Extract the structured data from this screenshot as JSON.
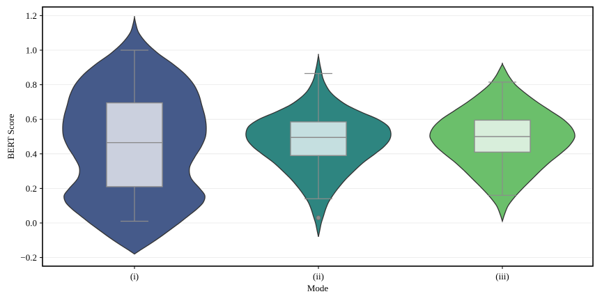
{
  "chart_data": {
    "type": "violin",
    "title": "",
    "xlabel": "Mode",
    "ylabel": "BERT Score",
    "categories": [
      "(i)",
      "(ii)",
      "(iii)"
    ],
    "ylim": [
      -0.25,
      1.25
    ],
    "yticks": [
      -0.2,
      0.0,
      0.2,
      0.4,
      0.6,
      0.8,
      1.0,
      1.2
    ],
    "ytick_labels": [
      "−0.2",
      "0.0",
      "0.2",
      "0.4",
      "0.6",
      "0.8",
      "1.0",
      "1.2"
    ],
    "grid": true,
    "colors": {
      "frame": "#000000",
      "grid": "#e8e8e8",
      "box_edge": "#8c8c8c",
      "outline": "#333333"
    },
    "series": [
      {
        "category": "(i)",
        "fill": "#455a8a",
        "box_fill": "#cbd0de",
        "min": 0.01,
        "q1": 0.21,
        "median": 0.465,
        "q3": 0.695,
        "max": 1.0,
        "outliers": [],
        "density": [
          [
            -0.18,
            0.0
          ],
          [
            -0.16,
            0.07
          ],
          [
            -0.12,
            0.22
          ],
          [
            -0.08,
            0.36
          ],
          [
            -0.04,
            0.49
          ],
          [
            0.0,
            0.62
          ],
          [
            0.04,
            0.74
          ],
          [
            0.08,
            0.86
          ],
          [
            0.12,
            0.95
          ],
          [
            0.16,
            0.97
          ],
          [
            0.2,
            0.9
          ],
          [
            0.26,
            0.78
          ],
          [
            0.32,
            0.76
          ],
          [
            0.38,
            0.83
          ],
          [
            0.44,
            0.92
          ],
          [
            0.5,
            0.98
          ],
          [
            0.56,
            0.99
          ],
          [
            0.62,
            0.97
          ],
          [
            0.68,
            0.93
          ],
          [
            0.74,
            0.89
          ],
          [
            0.8,
            0.82
          ],
          [
            0.86,
            0.7
          ],
          [
            0.92,
            0.53
          ],
          [
            0.98,
            0.33
          ],
          [
            1.04,
            0.17
          ],
          [
            1.1,
            0.06
          ],
          [
            1.15,
            0.02
          ],
          [
            1.19,
            0.0
          ]
        ]
      },
      {
        "category": "(ii)",
        "fill": "#2e8580",
        "box_fill": "#c5dfe0",
        "min": 0.14,
        "q1": 0.39,
        "median": 0.495,
        "q3": 0.585,
        "max": 0.865,
        "outliers": [
          0.03
        ],
        "density": [
          [
            -0.08,
            0.0
          ],
          [
            -0.04,
            0.02
          ],
          [
            0.0,
            0.04
          ],
          [
            0.04,
            0.07
          ],
          [
            0.08,
            0.1
          ],
          [
            0.12,
            0.14
          ],
          [
            0.16,
            0.2
          ],
          [
            0.2,
            0.27
          ],
          [
            0.25,
            0.37
          ],
          [
            0.3,
            0.49
          ],
          [
            0.35,
            0.62
          ],
          [
            0.4,
            0.78
          ],
          [
            0.44,
            0.9
          ],
          [
            0.48,
            0.98
          ],
          [
            0.52,
            1.0
          ],
          [
            0.56,
            0.96
          ],
          [
            0.6,
            0.82
          ],
          [
            0.64,
            0.6
          ],
          [
            0.68,
            0.4
          ],
          [
            0.72,
            0.26
          ],
          [
            0.76,
            0.16
          ],
          [
            0.8,
            0.1
          ],
          [
            0.84,
            0.06
          ],
          [
            0.88,
            0.04
          ],
          [
            0.92,
            0.02
          ],
          [
            0.97,
            0.0
          ]
        ]
      },
      {
        "category": "(iii)",
        "fill": "#6bbf6b",
        "box_fill": "#d8eedb",
        "min": 0.16,
        "q1": 0.41,
        "median": 0.5,
        "q3": 0.595,
        "max": 0.815,
        "outliers": [],
        "density": [
          [
            0.01,
            0.0
          ],
          [
            0.05,
            0.03
          ],
          [
            0.1,
            0.08
          ],
          [
            0.15,
            0.17
          ],
          [
            0.2,
            0.28
          ],
          [
            0.25,
            0.4
          ],
          [
            0.3,
            0.52
          ],
          [
            0.35,
            0.65
          ],
          [
            0.4,
            0.8
          ],
          [
            0.45,
            0.93
          ],
          [
            0.5,
            1.0
          ],
          [
            0.55,
            0.96
          ],
          [
            0.6,
            0.84
          ],
          [
            0.65,
            0.66
          ],
          [
            0.7,
            0.48
          ],
          [
            0.75,
            0.32
          ],
          [
            0.8,
            0.18
          ],
          [
            0.85,
            0.09
          ],
          [
            0.88,
            0.05
          ],
          [
            0.92,
            0.0
          ]
        ]
      }
    ]
  }
}
